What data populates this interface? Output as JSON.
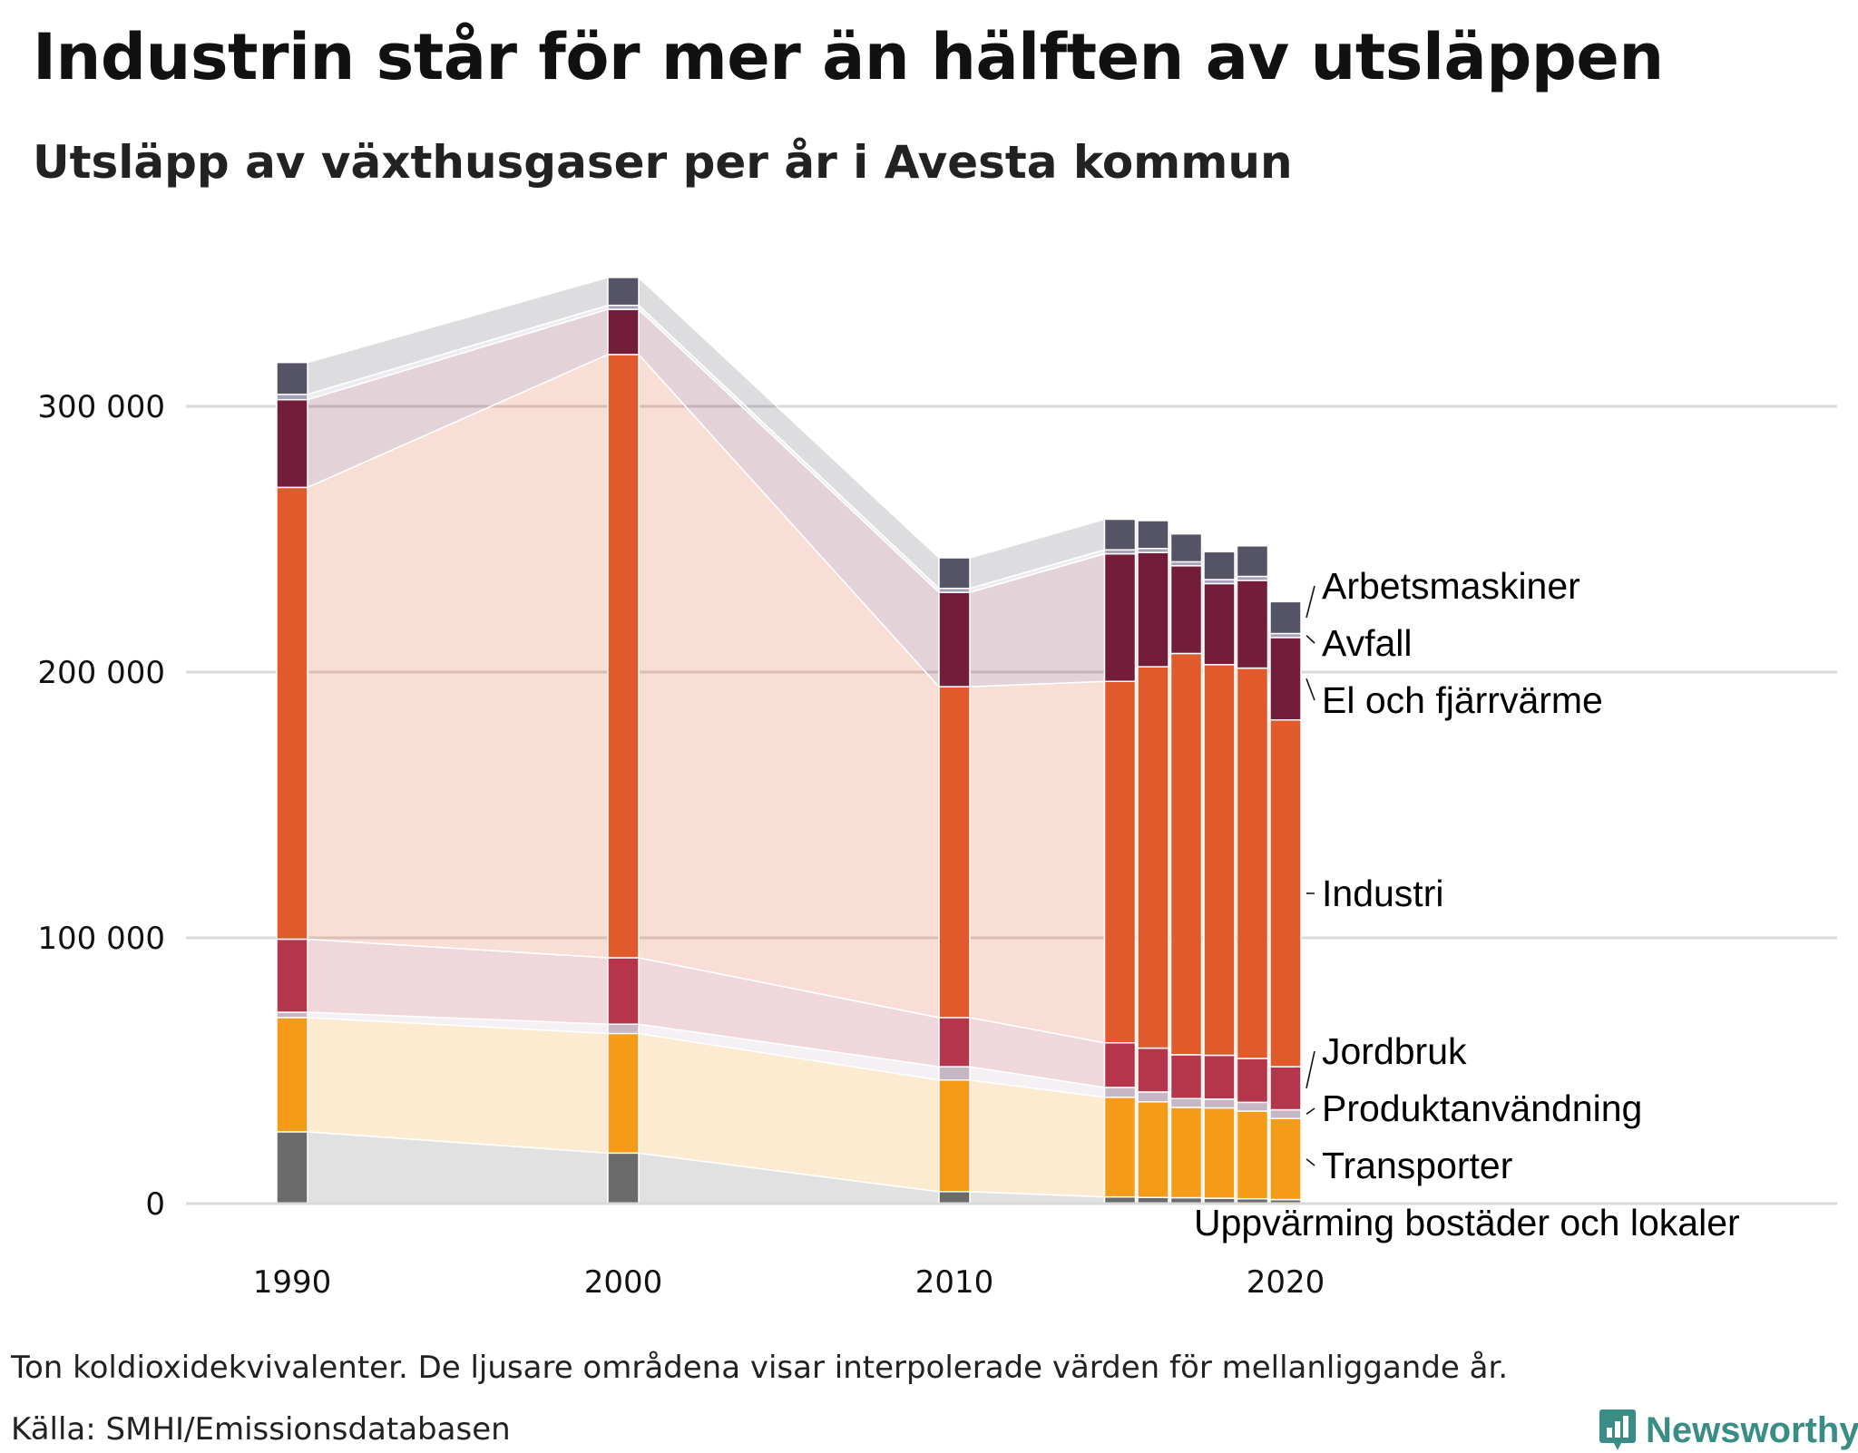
{
  "header": {
    "title": "Industrin står för mer än hälften av utsläppen",
    "subtitle": "Utsläpp av växthusgaser per år i Avesta kommun"
  },
  "footer": {
    "note": "Ton koldioxidekvivalenter. De ljusare områdena visar interpolerade värden för mellanliggande år.",
    "source": "Källa: SMHI/Emissionsdatabasen",
    "brand": "Newsworthy"
  },
  "colors": {
    "uppvarmning": "#6b6b6b",
    "transporter": "#f59b18",
    "produktanvandning": "#c7b6c3",
    "jordbruk": "#b5364a",
    "industri": "#e05a2b",
    "el_fjarrvarme": "#741d3b",
    "avfall": "#a4a1b8",
    "arbetsmaskiner": "#555366",
    "grid": "#d9d9d9"
  },
  "chart_data": {
    "type": "bar",
    "stacked": true,
    "title": "Industrin står för mer än hälften av utsläppen",
    "subtitle": "Utsläpp av växthusgaser per år i Avesta kommun",
    "xlabel": "",
    "ylabel": "Ton koldioxidekvivalenter",
    "ylim": [
      0,
      350000
    ],
    "yticks": [
      0,
      100000,
      200000,
      300000
    ],
    "ytick_labels": [
      "0",
      "100 000",
      "200 000",
      "300 000"
    ],
    "xlim": [
      1990,
      2020
    ],
    "xticks": [
      1990,
      2000,
      2010,
      2020
    ],
    "xtick_labels": [
      "1990",
      "2000",
      "2010",
      "2020"
    ],
    "grid": true,
    "interpolated_areas_shown": true,
    "categories": [
      1990,
      2000,
      2010,
      2015,
      2016,
      2017,
      2018,
      2019,
      2020
    ],
    "series": [
      {
        "key": "uppvarmning",
        "name": "Uppvärming bostäder och lokaler",
        "values": [
          27000,
          19000,
          4500,
          2500,
          2300,
          2200,
          2000,
          1800,
          1500
        ]
      },
      {
        "key": "transporter",
        "name": "Transporter",
        "values": [
          43000,
          45000,
          42000,
          37500,
          36000,
          34000,
          34000,
          33000,
          30500
        ]
      },
      {
        "key": "produktanvandning",
        "name": "Produktanvändning",
        "values": [
          2000,
          3500,
          5000,
          3700,
          3700,
          3300,
          3300,
          3300,
          3300
        ]
      },
      {
        "key": "jordbruk",
        "name": "Jordbruk",
        "values": [
          27500,
          25000,
          18500,
          16800,
          16500,
          16500,
          16500,
          16500,
          16200
        ]
      },
      {
        "key": "industri",
        "name": "Industri",
        "values": [
          170000,
          227000,
          124500,
          136000,
          143500,
          151000,
          147000,
          146900,
          130500
        ]
      },
      {
        "key": "el_fjarrvarme",
        "name": "El och fjärrvärme",
        "values": [
          33000,
          17000,
          35500,
          48000,
          43000,
          33000,
          30500,
          33000,
          31000
        ]
      },
      {
        "key": "avfall",
        "name": "Avfall",
        "values": [
          2000,
          1500,
          1500,
          1500,
          1500,
          1500,
          1500,
          1500,
          1500
        ]
      },
      {
        "key": "arbetsmaskiner",
        "name": "Arbetsmaskiner",
        "values": [
          12000,
          10500,
          11500,
          11500,
          10500,
          10500,
          10500,
          11500,
          12000
        ]
      }
    ]
  }
}
